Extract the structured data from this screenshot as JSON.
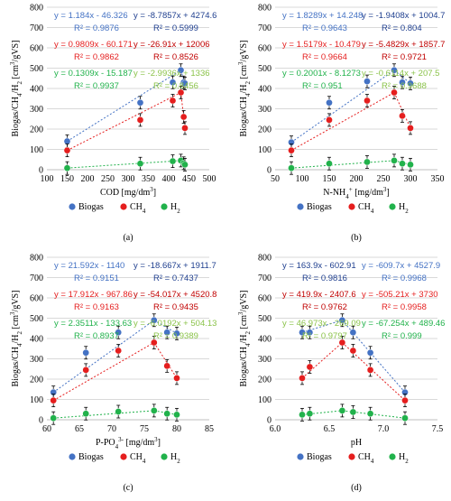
{
  "chart_data": [
    {
      "type": "scatter",
      "panel_label": "(a)",
      "xlabel": "COD [mg/dm3]",
      "ylabel": "Biogas/CH4/H2 [cm3/gVS]",
      "xlim": [
        100,
        500
      ],
      "ylim": [
        0,
        800
      ],
      "xticks": [
        100,
        150,
        200,
        250,
        300,
        350,
        400,
        450,
        500
      ],
      "yticks": [
        0,
        100,
        200,
        300,
        400,
        500,
        600,
        700,
        800
      ],
      "legend": [
        "Biogas",
        "CH4",
        "H2"
      ],
      "series": [
        {
          "name": "Biogas",
          "color": "#4472C4",
          "x": [
            150,
            330,
            410,
            430,
            437,
            440
          ],
          "y": [
            140,
            330,
            430,
            490,
            430,
            425
          ]
        },
        {
          "name": "CH4",
          "color": "#E51E1E",
          "x": [
            150,
            330,
            410,
            430,
            437,
            440
          ],
          "y": [
            95,
            245,
            340,
            380,
            260,
            205
          ]
        },
        {
          "name": "H2",
          "color": "#21B24B",
          "x": [
            150,
            330,
            410,
            430,
            437,
            440
          ],
          "y": [
            8,
            30,
            42,
            45,
            32,
            25
          ]
        }
      ],
      "equations": [
        {
          "text": "y = 1.184x - 46.326",
          "color": "#4472C4"
        },
        {
          "text": "y = -8.7857x + 4274.6",
          "color": "#1F3F8F"
        },
        {
          "text": "R² = 0.9876",
          "color": "#4472C4"
        },
        {
          "text": "R² = 0.5999",
          "color": "#1F3F8F"
        },
        {
          "text": "y = 0.9809x - 60.171",
          "color": "#E51E1E"
        },
        {
          "text": "y = -26.91x + 12006",
          "color": "#C00000"
        },
        {
          "text": "R² = 0.9862",
          "color": "#E51E1E"
        },
        {
          "text": "R² = 0.8526",
          "color": "#C00000"
        },
        {
          "text": "y = 0.1309x - 15.187",
          "color": "#21B24B"
        },
        {
          "text": "y = -2.9936x + 1336",
          "color": "#8BC34A"
        },
        {
          "text": "R² = 0.9937",
          "color": "#21B24B"
        },
        {
          "text": "R² = 0.8456",
          "color": "#8BC34A"
        }
      ]
    },
    {
      "type": "scatter",
      "panel_label": "(b)",
      "xlabel": "N-NH4+ [mg/dm3]",
      "ylabel": "Biogas/CH4/H2 [cm3/gVS]",
      "xlim": [
        50,
        350
      ],
      "ylim": [
        0,
        800
      ],
      "xticks": [
        50,
        100,
        150,
        200,
        250,
        300,
        350
      ],
      "yticks": [
        0,
        100,
        200,
        300,
        400,
        500,
        600,
        700,
        800
      ],
      "legend": [
        "Biogas",
        "CH4",
        "H2"
      ],
      "series": [
        {
          "name": "Biogas",
          "color": "#4472C4",
          "x": [
            80,
            150,
            220,
            270,
            285,
            300
          ],
          "y": [
            135,
            330,
            435,
            490,
            430,
            425
          ]
        },
        {
          "name": "CH4",
          "color": "#E51E1E",
          "x": [
            80,
            150,
            220,
            270,
            285,
            300
          ],
          "y": [
            95,
            245,
            340,
            380,
            265,
            205
          ]
        },
        {
          "name": "H2",
          "color": "#21B24B",
          "x": [
            80,
            150,
            220,
            270,
            285,
            300
          ],
          "y": [
            8,
            30,
            38,
            45,
            30,
            25
          ]
        }
      ],
      "equations": [
        {
          "text": "y = 1.8289x + 14.248",
          "color": "#4472C4"
        },
        {
          "text": "y = -1.9408x + 1004.7",
          "color": "#1F3F8F"
        },
        {
          "text": "R² = 0.9643",
          "color": "#4472C4"
        },
        {
          "text": "R² = 0.804",
          "color": "#1F3F8F"
        },
        {
          "text": "y = 1.5179x - 10.479",
          "color": "#E51E1E"
        },
        {
          "text": "y = -5.4829x + 1857.7",
          "color": "#C00000"
        },
        {
          "text": "R² = 0.9664",
          "color": "#E51E1E"
        },
        {
          "text": "R² = 0.9721",
          "color": "#C00000"
        },
        {
          "text": "y = 0.2001x - 8.1273",
          "color": "#21B24B"
        },
        {
          "text": "y = -0.6114x + 207.5",
          "color": "#8BC34A"
        },
        {
          "text": "R² = 0.951",
          "color": "#21B24B"
        },
        {
          "text": "R² = 0.9688",
          "color": "#8BC34A"
        }
      ]
    },
    {
      "type": "scatter",
      "panel_label": "(c)",
      "xlabel": "P-PO43- [mg/dm3]",
      "ylabel": "Biogas/CH4/H2 [cm3/gVS]",
      "xlim": [
        60,
        85
      ],
      "ylim": [
        0,
        800
      ],
      "xticks": [
        60,
        65,
        70,
        75,
        80,
        85
      ],
      "yticks": [
        0,
        100,
        200,
        300,
        400,
        500,
        600,
        700,
        800
      ],
      "legend": [
        "Biogas",
        "CH4",
        "H2"
      ],
      "series": [
        {
          "name": "Biogas",
          "color": "#4472C4",
          "x": [
            61,
            66,
            71,
            76.5,
            78.5,
            80
          ],
          "y": [
            135,
            330,
            430,
            490,
            430,
            425
          ]
        },
        {
          "name": "CH4",
          "color": "#E51E1E",
          "x": [
            61,
            66,
            71,
            76.5,
            78.5,
            80
          ],
          "y": [
            95,
            245,
            340,
            380,
            265,
            205
          ]
        },
        {
          "name": "H2",
          "color": "#21B24B",
          "x": [
            61,
            66,
            71,
            76.5,
            78.5,
            80
          ],
          "y": [
            8,
            30,
            40,
            45,
            30,
            25
          ]
        }
      ],
      "equations": [
        {
          "text": "y = 21.592x - 1140",
          "color": "#4472C4"
        },
        {
          "text": "y = -18.667x + 1911.7",
          "color": "#1F3F8F"
        },
        {
          "text": "R² = 0.9151",
          "color": "#4472C4"
        },
        {
          "text": "R² = 0.7437",
          "color": "#1F3F8F"
        },
        {
          "text": "y = 17.912x - 967.86",
          "color": "#E51E1E"
        },
        {
          "text": "y = -54.017x + 4520.8",
          "color": "#C00000"
        },
        {
          "text": "R² = 0.9163",
          "color": "#E51E1E"
        },
        {
          "text": "R² = 0.9435",
          "color": "#C00000"
        },
        {
          "text": "y = 2.3511x - 133.63",
          "color": "#21B24B"
        },
        {
          "text": "y = -6.0192x + 504.13",
          "color": "#8BC34A"
        },
        {
          "text": "R² = 0.8937",
          "color": "#21B24B"
        },
        {
          "text": "R² = 0.9389",
          "color": "#8BC34A"
        }
      ]
    },
    {
      "type": "scatter",
      "panel_label": "(d)",
      "xlabel": "pH",
      "ylabel": "Biogas/CH4/H2 [cm3/gVS]",
      "xlim": [
        6.0,
        7.5
      ],
      "ylim": [
        0,
        800
      ],
      "xticks": [
        6.0,
        6.5,
        7.0,
        7.5
      ],
      "yticks": [
        0,
        100,
        200,
        300,
        400,
        500,
        600,
        700,
        800
      ],
      "legend": [
        "Biogas",
        "CH4",
        "H2"
      ],
      "series": [
        {
          "name": "Biogas",
          "color": "#4472C4",
          "x": [
            6.25,
            6.32,
            6.62,
            6.72,
            6.88,
            7.2
          ],
          "y": [
            430,
            430,
            490,
            430,
            330,
            135
          ]
        },
        {
          "name": "CH4",
          "color": "#E51E1E",
          "x": [
            6.25,
            6.32,
            6.62,
            6.72,
            6.88,
            7.2
          ],
          "y": [
            205,
            260,
            380,
            340,
            245,
            95
          ]
        },
        {
          "name": "H2",
          "color": "#21B24B",
          "x": [
            6.25,
            6.32,
            6.62,
            6.72,
            6.88,
            7.2
          ],
          "y": [
            25,
            30,
            45,
            38,
            30,
            8
          ]
        }
      ],
      "equations": [
        {
          "text": "y = 163.9x - 602.91",
          "color": "#1F3F8F"
        },
        {
          "text": "y = -609.7x + 4527.9",
          "color": "#4472C4"
        },
        {
          "text": "R² = 0.9816",
          "color": "#1F3F8F"
        },
        {
          "text": "R² = 0.9968",
          "color": "#4472C4"
        },
        {
          "text": "y = 419.9x - 2407.6",
          "color": "#C00000"
        },
        {
          "text": "y = -505.21x + 3730",
          "color": "#E51E1E"
        },
        {
          "text": "R² = 0.9762",
          "color": "#C00000"
        },
        {
          "text": "R² = 0.9958",
          "color": "#E51E1E"
        },
        {
          "text": "y = 46.973x - 269.09",
          "color": "#8BC34A"
        },
        {
          "text": "y = -67.254x + 489.46",
          "color": "#21B24B"
        },
        {
          "text": "R² = 0.9797",
          "color": "#8BC34A"
        },
        {
          "text": "R² = 0.999",
          "color": "#21B24B"
        }
      ]
    }
  ]
}
